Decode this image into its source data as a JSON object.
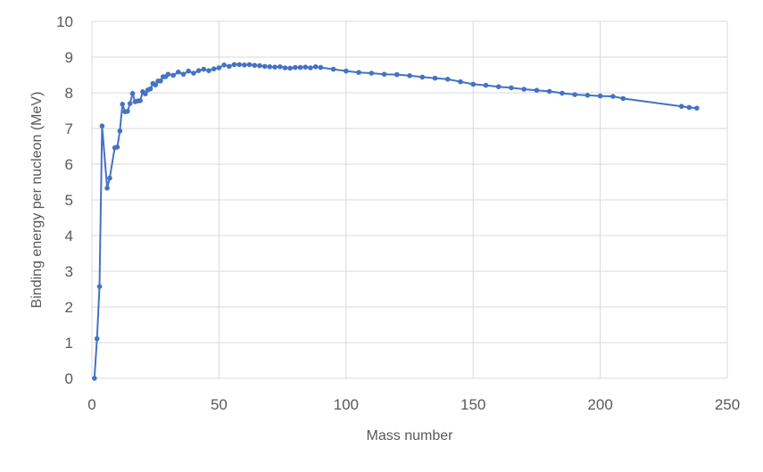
{
  "chart_data": {
    "type": "scatter",
    "title": "",
    "xlabel": "Mass number",
    "ylabel": "Binding energy per nucleon (MeV)",
    "xlim": [
      0,
      250
    ],
    "ylim": [
      0,
      10
    ],
    "xticks": [
      0,
      50,
      100,
      150,
      200,
      250
    ],
    "yticks": [
      0,
      1,
      2,
      3,
      4,
      5,
      6,
      7,
      8,
      9,
      10
    ],
    "grid": true,
    "legend": "none",
    "line_color": "#4472C4",
    "series": [
      {
        "x": [
          1,
          2,
          3,
          4,
          6,
          7,
          9,
          10,
          11,
          12,
          13,
          14,
          15,
          16,
          17,
          18,
          19,
          20,
          21,
          22,
          23,
          24,
          25,
          26,
          27,
          28,
          29,
          30,
          32,
          34,
          36,
          38,
          40,
          42,
          44,
          46,
          48,
          50,
          52,
          54,
          56,
          58,
          60,
          62,
          64,
          66,
          68,
          70,
          72,
          74,
          76,
          78,
          80,
          82,
          84,
          86,
          88,
          90,
          95,
          100,
          105,
          110,
          115,
          120,
          125,
          130,
          135,
          140,
          145,
          150,
          155,
          160,
          165,
          170,
          175,
          180,
          185,
          190,
          195,
          200,
          205,
          209,
          232,
          235,
          238
        ],
        "y": [
          0.0,
          1.11,
          2.57,
          7.07,
          5.33,
          5.61,
          6.46,
          6.48,
          6.93,
          7.68,
          7.47,
          7.48,
          7.7,
          7.98,
          7.75,
          7.77,
          7.78,
          8.03,
          7.97,
          8.08,
          8.11,
          8.26,
          8.22,
          8.33,
          8.33,
          8.45,
          8.45,
          8.52,
          8.49,
          8.58,
          8.52,
          8.61,
          8.55,
          8.62,
          8.66,
          8.62,
          8.67,
          8.7,
          8.78,
          8.74,
          8.79,
          8.79,
          8.78,
          8.79,
          8.77,
          8.76,
          8.74,
          8.73,
          8.72,
          8.73,
          8.7,
          8.69,
          8.71,
          8.71,
          8.72,
          8.7,
          8.73,
          8.71,
          8.66,
          8.61,
          8.57,
          8.55,
          8.52,
          8.51,
          8.48,
          8.44,
          8.41,
          8.38,
          8.31,
          8.24,
          8.21,
          8.17,
          8.14,
          8.1,
          8.07,
          8.04,
          7.99,
          7.95,
          7.93,
          7.91,
          7.9,
          7.84,
          7.62,
          7.59,
          7.57
        ]
      }
    ]
  }
}
